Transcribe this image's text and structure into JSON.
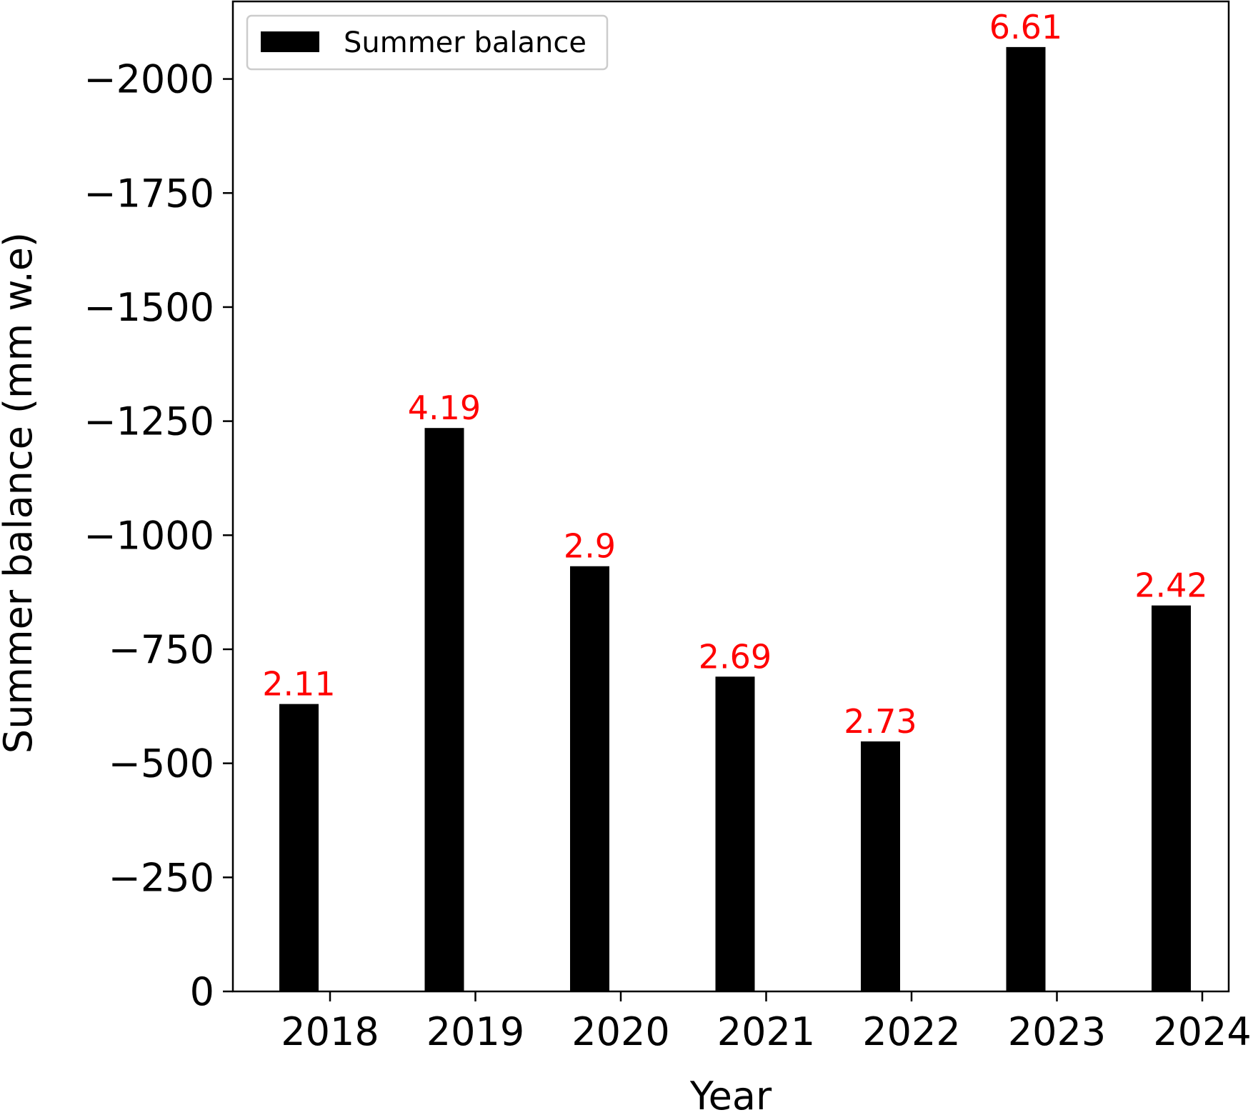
{
  "chart_data": {
    "type": "bar",
    "title": "",
    "xlabel": "Year",
    "ylabel": "Summer balance (mm w.e)",
    "categories": [
      "2018",
      "2019",
      "2020",
      "2021",
      "2022",
      "2023",
      "2024"
    ],
    "series": [
      {
        "name": "Summer balance",
        "values": [
          -630,
          -1235,
          -932,
          -690,
          -548,
          -2070,
          -846
        ],
        "color": "#000000"
      }
    ],
    "bar_labels": [
      "2.11",
      "4.19",
      "2.9",
      "2.69",
      "2.73",
      "6.61",
      "2.42"
    ],
    "bar_label_color": "#ff0000",
    "yticks": [
      0,
      -250,
      -500,
      -750,
      -1000,
      -1250,
      -1500,
      -1750,
      -2000
    ],
    "ytick_labels": [
      "0",
      "−250",
      "−500",
      "−750",
      "−1000",
      "−1250",
      "−1500",
      "−1750",
      "−2000"
    ],
    "ylim": [
      0,
      -2170
    ],
    "y_axis_inverted": true,
    "grid": false,
    "legend": {
      "position": "upper-left",
      "entries": [
        "Summer balance"
      ]
    }
  }
}
